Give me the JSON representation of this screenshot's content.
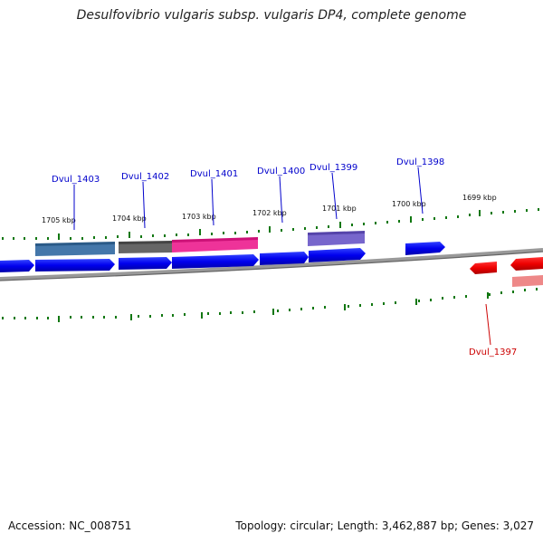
{
  "title": "Desulfovibrio vulgaris subsp. vulgaris DP4, complete genome",
  "footer": {
    "accession": "Accession: NC_008751",
    "summary": "Topology: circular; Length: 3,462,887 bp; Genes: 3,027"
  },
  "ruler_labels": [
    "1705 kbp",
    "1704 kbp",
    "1703 kbp",
    "1702 kbp",
    "1701 kbp",
    "1700 kbp",
    "1699 kbp"
  ],
  "gene_labels_top": [
    "Dvul_1403",
    "Dvul_1402",
    "Dvul_1401",
    "Dvul_1400",
    "Dvul_1399",
    "Dvul_1398"
  ],
  "gene_labels_bottom": [
    "Dvul_1397"
  ],
  "colors": {
    "forward_gene": "#0000ee",
    "reverse_gene": "#ee0000",
    "label_forward": "#0000cc",
    "label_reverse": "#cc0000",
    "tick": "#117711",
    "backbone": "#888888"
  }
}
